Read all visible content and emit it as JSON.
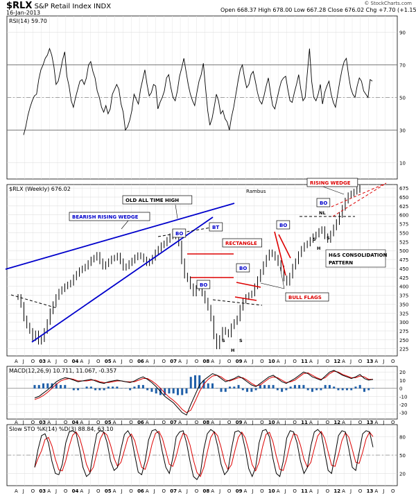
{
  "header": {
    "symbol": "$RLX",
    "name": "S&P Retail Index  INDX",
    "date": "16-Jan-2013",
    "quote": "Open 668.37  High 678.00  Low 667.28  Close 676.02  Chg +7.70 (+1.15%)",
    "credit": "© StockCharts.com"
  },
  "rsi": {
    "label": "RSI(14) 59.70",
    "ticks": [
      10,
      30,
      50,
      70,
      90
    ],
    "ylim": [
      0,
      100
    ],
    "values": [
      27,
      32,
      39,
      44,
      48,
      51,
      52,
      61,
      67,
      70,
      74,
      76,
      80,
      76,
      69,
      58,
      60,
      66,
      73,
      78,
      63,
      57,
      48,
      44,
      50,
      55,
      60,
      61,
      58,
      62,
      70,
      72,
      66,
      62,
      54,
      50,
      44,
      41,
      45,
      40,
      43,
      52,
      55,
      58,
      55,
      46,
      41,
      30,
      32,
      36,
      42,
      52,
      49,
      46,
      55,
      61,
      67,
      58,
      51,
      53,
      58,
      57,
      43,
      47,
      50,
      54,
      62,
      64,
      56,
      50,
      48,
      54,
      63,
      68,
      74,
      66,
      58,
      52,
      48,
      45,
      53,
      60,
      64,
      71,
      56,
      42,
      33,
      37,
      44,
      52,
      48,
      40,
      42,
      37,
      35,
      30,
      38,
      44,
      52,
      60,
      67,
      70,
      62,
      56,
      58,
      64,
      66,
      60,
      53,
      48,
      46,
      51,
      57,
      62,
      53,
      45,
      43,
      49,
      55,
      60,
      62,
      63,
      55,
      48,
      47,
      53,
      58,
      64,
      55,
      48,
      50,
      65,
      80,
      60,
      50,
      48,
      52,
      58,
      46,
      53,
      57,
      60,
      52,
      47,
      44,
      52,
      60,
      67,
      72,
      74,
      64,
      56,
      52,
      50,
      57,
      62,
      60,
      54,
      52,
      50,
      61,
      60
    ]
  },
  "price": {
    "label": "$RLX (Weekly) 676.02",
    "ticks": [
      225,
      250,
      275,
      300,
      325,
      350,
      375,
      400,
      425,
      450,
      475,
      500,
      525,
      550,
      575,
      600,
      625,
      650,
      675
    ],
    "ylim": [
      205,
      685
    ],
    "values": [
      370,
      348,
      310,
      290,
      275,
      255,
      268,
      245,
      252,
      275,
      300,
      330,
      350,
      370,
      385,
      392,
      400,
      405,
      410,
      425,
      435,
      445,
      450,
      455,
      465,
      475,
      480,
      488,
      470,
      455,
      462,
      470,
      478,
      480,
      486,
      470,
      452,
      456,
      465,
      472,
      481,
      487,
      484,
      475,
      465,
      470,
      480,
      495,
      505,
      515,
      520,
      530,
      540,
      550,
      540,
      520,
      470,
      430,
      420,
      400,
      380,
      395,
      405,
      380,
      360,
      340,
      310,
      260,
      232,
      255,
      278,
      272,
      265,
      288,
      300,
      310,
      340,
      360,
      370,
      375,
      380,
      400,
      420,
      440,
      462,
      480,
      495,
      490,
      480,
      465,
      450,
      422,
      410,
      430,
      455,
      470,
      490,
      505,
      515,
      520,
      530,
      540,
      545,
      555,
      560,
      540,
      530,
      548,
      565,
      580,
      600,
      620,
      640,
      655,
      660,
      665,
      670,
      676
    ],
    "annotations": {
      "bearish_rising_wedge": "BEARISH RISING WEDGE",
      "old_all_time_high": "OLD ALL TIME HIGH",
      "rectangle": "RECTANGLE",
      "bull_flags": "BULL FLAGS",
      "rising_wedge": "RISING WEDGE",
      "rambus": "Rambus",
      "bo": "BO",
      "bt": "BT",
      "hs_consolidation_1": "H&S CONSOLIDATION",
      "hs_consolidation_2": "PATTERN",
      "s": "S",
      "h": "H",
      "nl": "NL"
    }
  },
  "macd": {
    "label": "MACD(12,26,9) 10.711, 11.067, -0.357",
    "ticks": [
      20,
      10,
      0,
      -10,
      -20,
      -30
    ],
    "ylim": [
      -38,
      27
    ],
    "macd_values": [
      -12,
      -10,
      -6,
      -2,
      3,
      8,
      11,
      13,
      12,
      10,
      8,
      9,
      10,
      11,
      9,
      7,
      6,
      8,
      9,
      10,
      9,
      8,
      7,
      9,
      12,
      14,
      11,
      7,
      2,
      -4,
      -10,
      -14,
      -18,
      -24,
      -30,
      -33,
      -20,
      -8,
      4,
      10,
      14,
      18,
      16,
      12,
      8,
      10,
      12,
      15,
      12,
      8,
      4,
      2,
      6,
      10,
      14,
      16,
      12,
      8,
      6,
      9,
      12,
      16,
      20,
      18,
      14,
      12,
      10,
      15,
      20,
      22,
      19,
      16,
      14,
      12,
      14,
      17,
      12,
      10,
      11
    ],
    "signal_values": [
      -14,
      -12,
      -9,
      -5,
      0,
      5,
      9,
      11,
      12,
      11,
      9,
      9,
      9,
      10,
      10,
      8,
      7,
      7,
      8,
      9,
      9,
      8,
      8,
      8,
      10,
      12,
      12,
      9,
      5,
      0,
      -6,
      -11,
      -15,
      -20,
      -26,
      -30,
      -27,
      -16,
      -4,
      5,
      11,
      15,
      16,
      14,
      10,
      9,
      11,
      13,
      13,
      10,
      6,
      3,
      4,
      8,
      12,
      14,
      13,
      10,
      7,
      8,
      10,
      14,
      18,
      19,
      16,
      13,
      11,
      13,
      18,
      21,
      20,
      17,
      15,
      13,
      13,
      15,
      14,
      11,
      11
    ]
  },
  "sto": {
    "label": "Slow STO %K(14) %D(3) 88.84, 63.10",
    "ticks": [
      80,
      50,
      20
    ],
    "ylim": [
      0,
      100
    ],
    "values": [
      30,
      60,
      82,
      85,
      70,
      40,
      20,
      18,
      35,
      70,
      88,
      90,
      86,
      60,
      30,
      15,
      20,
      55,
      85,
      90,
      88,
      70,
      40,
      25,
      30,
      60,
      84,
      90,
      80,
      50,
      22,
      18,
      40,
      75,
      90,
      92,
      85,
      55,
      30,
      20,
      45,
      80,
      88,
      90,
      70,
      40,
      15,
      10,
      20,
      60,
      85,
      92,
      88,
      65,
      35,
      18,
      25,
      60,
      88,
      90,
      85,
      60,
      28,
      15,
      30,
      70,
      90,
      92,
      80,
      45,
      20,
      15,
      40,
      78,
      90,
      88,
      70,
      40,
      20,
      30,
      65,
      88,
      92,
      86,
      55,
      25,
      20,
      50,
      82,
      90,
      88,
      60,
      30,
      25,
      55,
      85,
      90,
      88,
      63
    ]
  },
  "x_axis": {
    "labels": [
      "A",
      "J",
      "O",
      "03",
      "A",
      "J",
      "O",
      "04",
      "A",
      "J",
      "O",
      "05",
      "A",
      "J",
      "O",
      "06",
      "A",
      "J",
      "O",
      "07",
      "A",
      "J",
      "O",
      "08",
      "A",
      "J",
      "O",
      "09",
      "A",
      "J",
      "O",
      "10",
      "A",
      "J",
      "O",
      "11",
      "A",
      "J",
      "O",
      "12",
      "A",
      "J",
      "O",
      "13",
      "A",
      "J",
      "O"
    ]
  },
  "colors": {
    "accent_blue": "#0000cc",
    "accent_red": "#dd0000",
    "grid": "#bbbbbb",
    "hist": "#1f5fa8"
  }
}
